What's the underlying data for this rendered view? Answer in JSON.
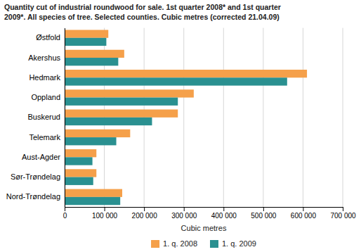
{
  "chart_data": {
    "type": "bar",
    "orientation": "horizontal",
    "title": "Quantity cut of industrial roundwood for sale. 1st quarter 2008* and 1st quarter\n2009*. All species of tree. Selected counties. Cubic metres (corrected 21.04.09)",
    "categories": [
      "Østfold",
      "Akershus",
      "Hedmark",
      "Oppland",
      "Buskerud",
      "Telemark",
      "Aust-Agder",
      "Sør-Trøndelag",
      "Nord-Trøndelag"
    ],
    "series": [
      {
        "name": "1. q. 2008",
        "color": "#f5a04a",
        "values": [
          110000,
          150000,
          610000,
          325000,
          285000,
          165000,
          80000,
          80000,
          145000
        ]
      },
      {
        "name": "1. q. 2009",
        "color": "#2a9090",
        "values": [
          105000,
          135000,
          560000,
          285000,
          220000,
          130000,
          70000,
          72000,
          140000
        ]
      }
    ],
    "xlabel": "Cubic metres",
    "xlim": [
      0,
      700000
    ],
    "xticks": [
      0,
      {
        "value": 100000,
        "label": "100 000"
      },
      {
        "value": 200000,
        "label": "200 000"
      },
      {
        "value": 300000,
        "label": "300 000"
      },
      {
        "value": 400000,
        "label": "400 000"
      },
      {
        "value": 500000,
        "label": "500 000"
      },
      {
        "value": 600000,
        "label": "600 000"
      },
      {
        "value": 700000,
        "label": "700 000"
      }
    ],
    "grid": true,
    "legend": "bottom"
  }
}
